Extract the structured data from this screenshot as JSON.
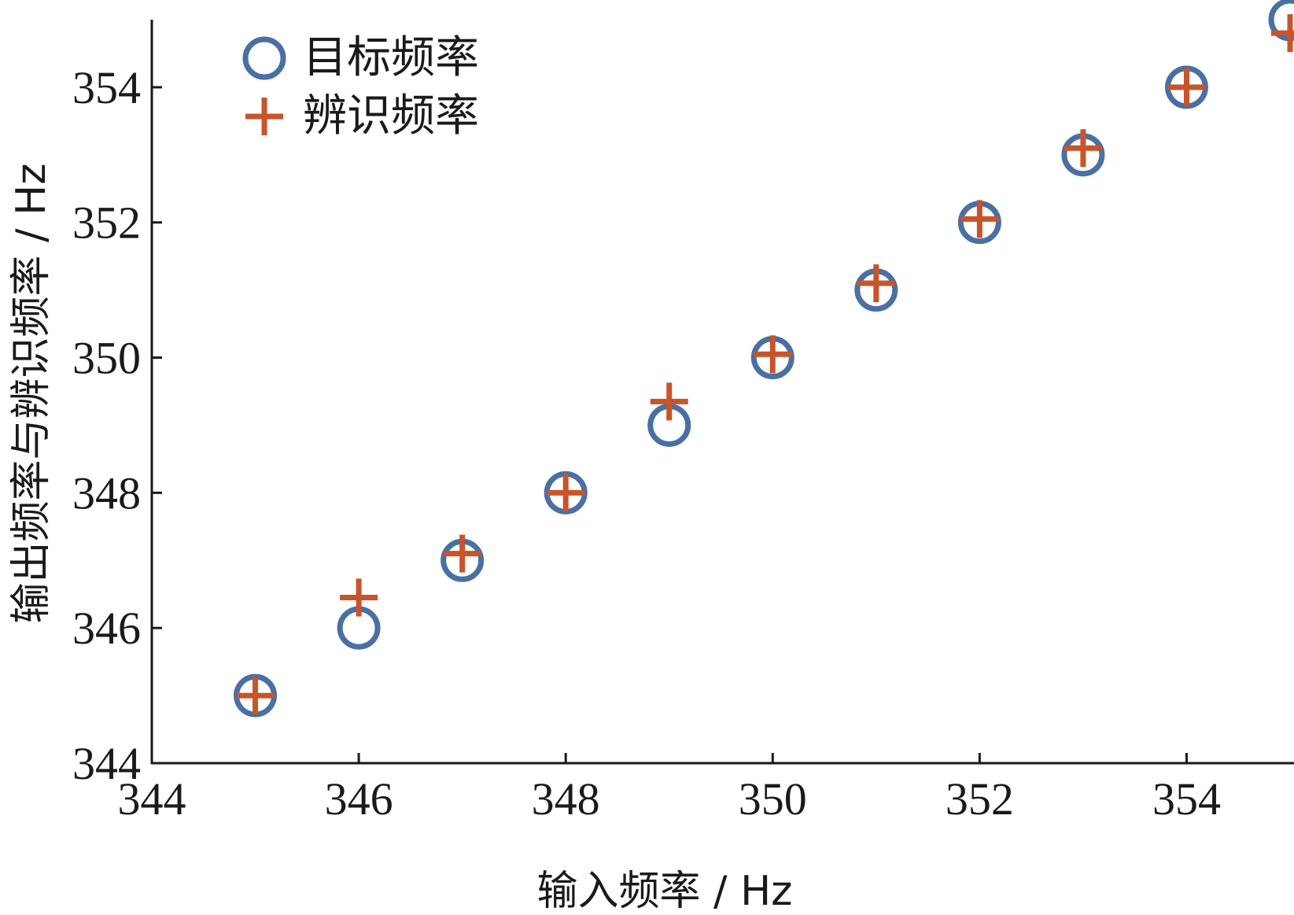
{
  "chart_data": {
    "type": "scatter",
    "title": "",
    "xlabel": "输入频率 / Hz",
    "ylabel": "输出频率与辨识频率 / Hz",
    "xlim": [
      344,
      355
    ],
    "ylim": [
      344,
      355
    ],
    "xticks": [
      "344",
      "346",
      "348",
      "350",
      "352",
      "354"
    ],
    "yticks": [
      "344",
      "346",
      "348",
      "350",
      "352",
      "354"
    ],
    "grid": false,
    "legend_position": "top-left",
    "series": [
      {
        "name": "目标频率",
        "marker": "circle",
        "color": "#4a6fa5",
        "x": [
          345,
          346,
          347,
          348,
          349,
          350,
          351,
          352,
          353,
          354,
          355
        ],
        "y": [
          345,
          346,
          347,
          348,
          349,
          350,
          351,
          352,
          353,
          354,
          355
        ]
      },
      {
        "name": "辨识频率",
        "marker": "plus",
        "color": "#c8542b",
        "x": [
          345,
          346,
          347,
          348,
          349,
          350,
          351,
          352,
          353,
          354,
          355
        ],
        "y": [
          345.0,
          346.45,
          347.1,
          348.0,
          349.35,
          350.05,
          351.1,
          352.05,
          353.1,
          354.0,
          354.8
        ]
      }
    ]
  }
}
